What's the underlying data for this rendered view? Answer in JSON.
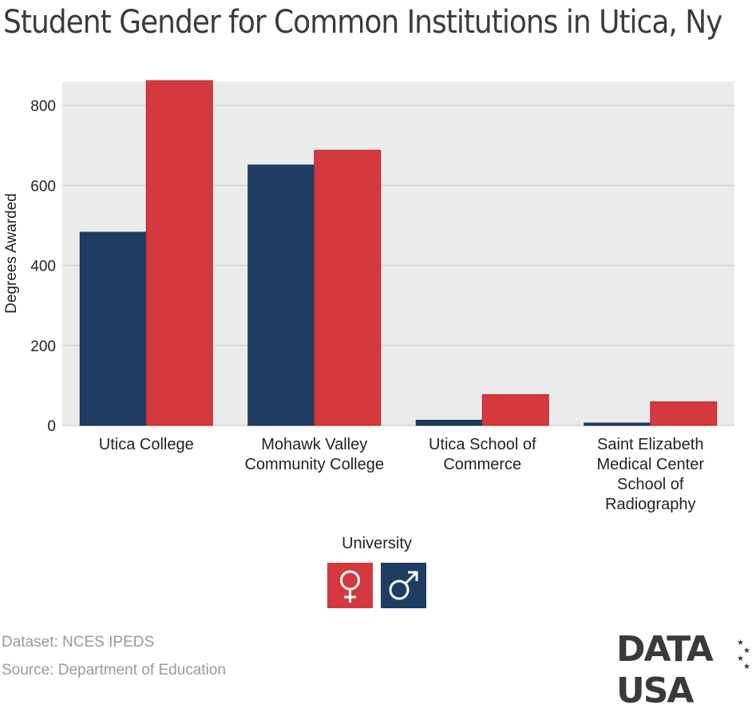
{
  "title": "Student Gender for Common Institutions in Utica, Ny",
  "legend": {
    "title": "University",
    "items": [
      {
        "name": "female",
        "icon": "female-symbol-icon",
        "color": "#d4393d"
      },
      {
        "name": "male",
        "icon": "male-symbol-icon",
        "color": "#1f3d63"
      }
    ]
  },
  "footer": {
    "dataset": "Dataset: NCES IPEDS",
    "source": "Source: Department of Education",
    "logo": "DATA USA"
  },
  "chart_data": {
    "type": "bar",
    "ylabel": "Degrees Awarded",
    "xlabel": "",
    "ylim": [
      0,
      860
    ],
    "yticks": [
      0,
      200,
      400,
      600,
      800
    ],
    "grid": true,
    "legend_position": "bottom-center",
    "categories": [
      [
        "Utica College"
      ],
      [
        "Mohawk Valley",
        "Community College"
      ],
      [
        "Utica School of",
        "Commerce"
      ],
      [
        "Saint Elizabeth",
        "Medical Center",
        "School of",
        "Radiography"
      ]
    ],
    "series": [
      {
        "key": "male",
        "color": "#1f3d63",
        "values": [
          483,
          651,
          13,
          6
        ]
      },
      {
        "key": "female",
        "color": "#d4393d",
        "values": [
          862,
          688,
          77,
          59
        ]
      }
    ]
  }
}
